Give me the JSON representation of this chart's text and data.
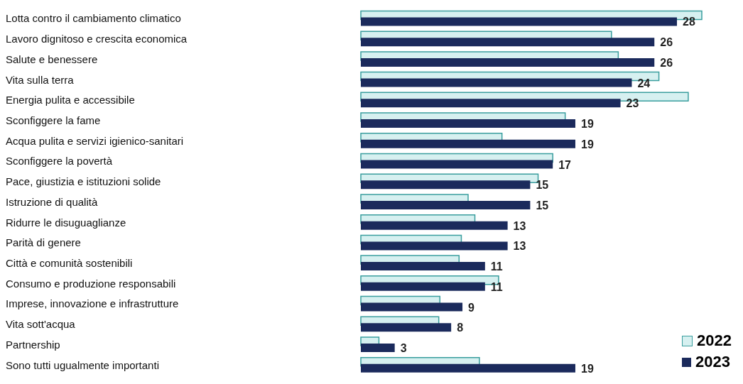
{
  "chart_data": {
    "type": "bar",
    "orientation": "horizontal",
    "legend": "bottom right",
    "categories": [
      "Lotta contro il cambiamento climatico",
      "Lavoro dignitoso e crescita economica",
      "Salute e benessere",
      "Vita sulla terra",
      "Energia pulita e accessibile",
      "Sconfiggere la fame",
      "Acqua pulita e servizi igienico-sanitari",
      "Sconfiggere la povertà",
      "Pace, giustizia e istituzioni solide",
      "Istruzione di qualità",
      "Ridurre le disuguaglianze",
      "Parità di genere",
      "Città e comunità sostenibili",
      "Consumo e produzione responsabili",
      "Imprese, innovazione e infrastrutture",
      "Vita sott'acqua",
      "Partnership",
      "Sono tutti ugualmente importanti"
    ],
    "series": [
      {
        "name": "2022",
        "color": "#d6f0f0",
        "values": [
          30.2,
          22.2,
          22.8,
          26.4,
          29.0,
          18.1,
          12.5,
          17.0,
          15.7,
          9.5,
          10.1,
          8.9,
          8.7,
          12.2,
          7.0,
          6.9,
          1.6,
          10.5
        ]
      },
      {
        "name": "2023",
        "color": "#1b2a5c",
        "values": [
          28,
          26,
          26,
          24,
          23,
          19,
          19,
          17,
          15,
          15,
          13,
          13,
          11,
          11,
          9,
          8,
          3,
          19
        ],
        "value_labels": [
          "28",
          "26",
          "26",
          "24",
          "23",
          "19",
          "19",
          "17",
          "15",
          "15",
          "13",
          "13",
          "11",
          "11",
          "9",
          "8",
          "3",
          "19"
        ]
      }
    ]
  }
}
